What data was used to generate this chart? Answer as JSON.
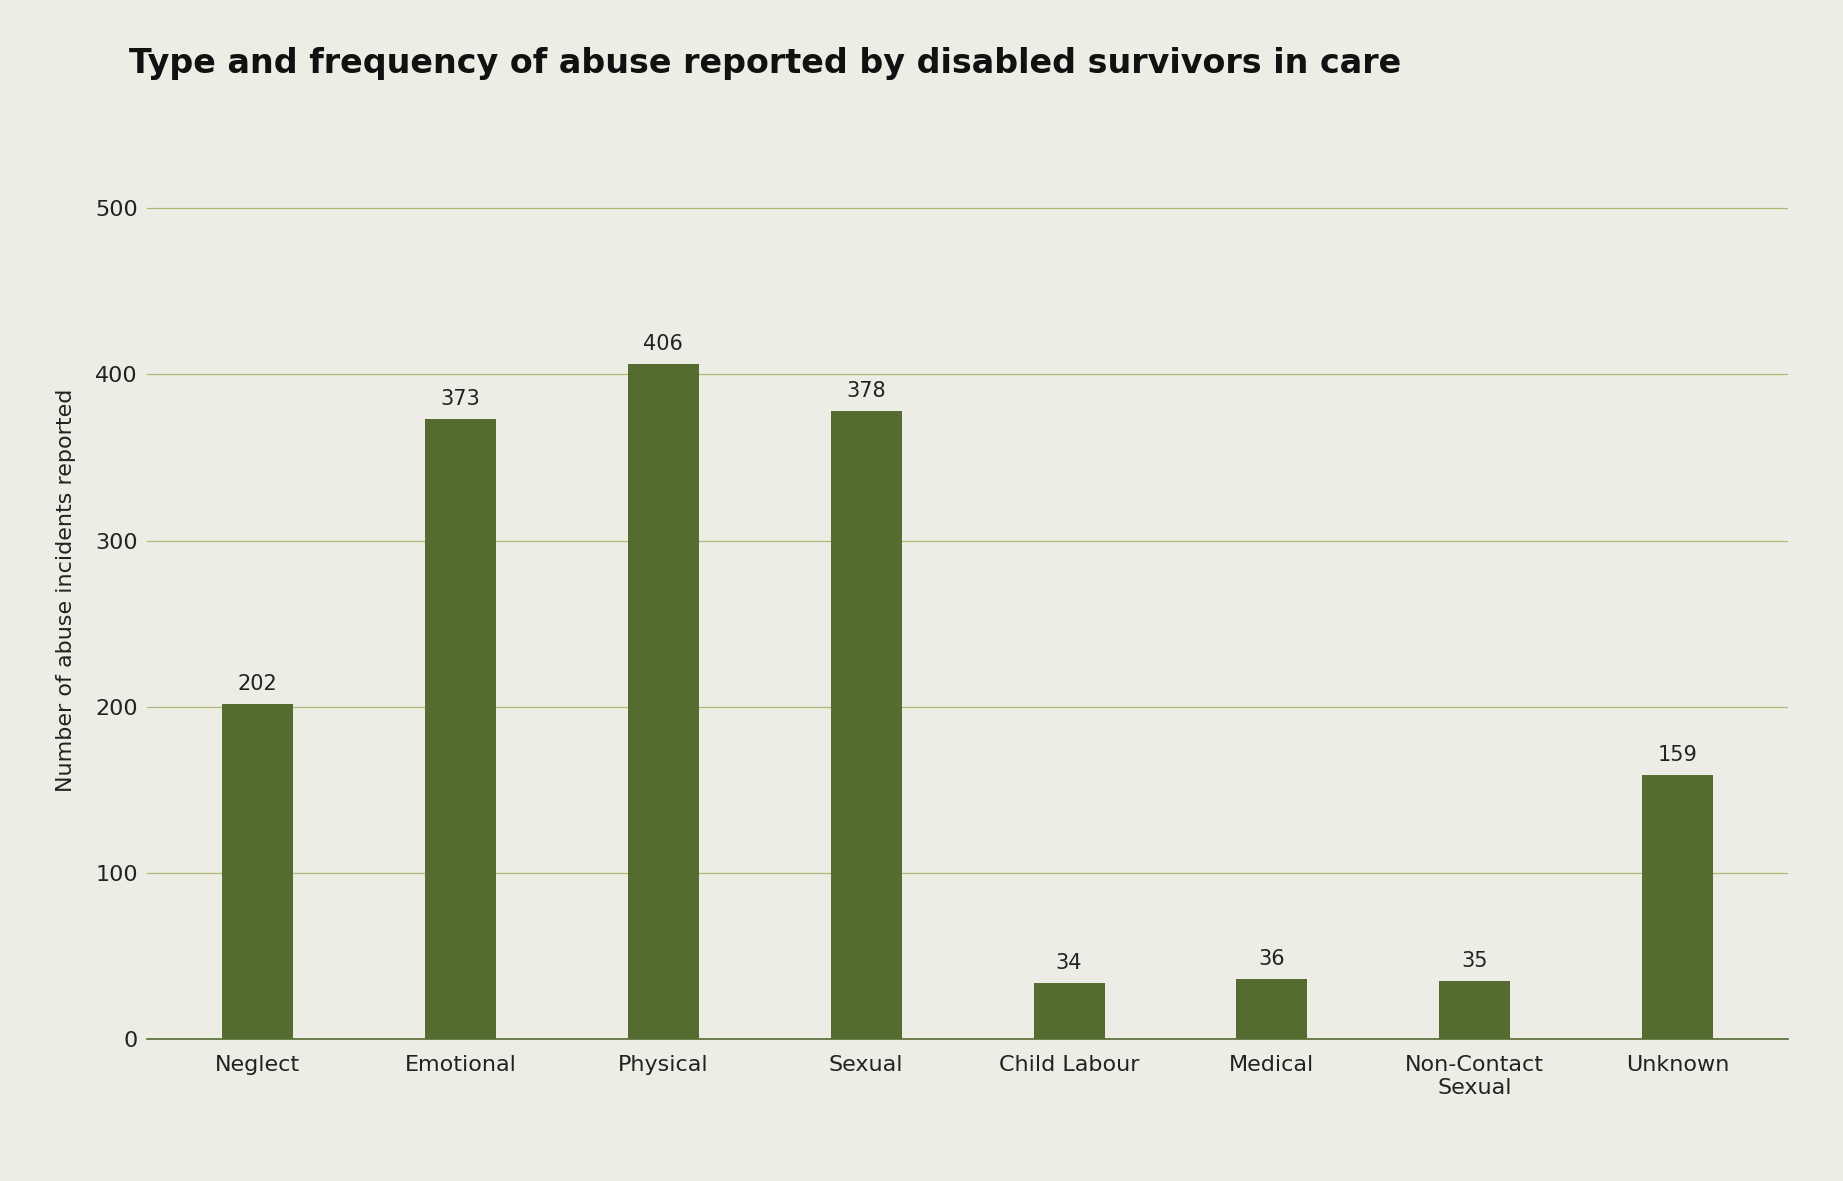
{
  "title": "Type and frequency of abuse reported by disabled survivors in care",
  "categories": [
    "Neglect",
    "Emotional",
    "Physical",
    "Sexual",
    "Child Labour",
    "Medical",
    "Non-Contact\nSexual",
    "Unknown"
  ],
  "values": [
    202,
    373,
    406,
    378,
    34,
    36,
    35,
    159
  ],
  "bar_color": "#556b2f",
  "background_color": "#eeede5",
  "ylabel": "Number of abuse incidents reported",
  "ylim": [
    0,
    540
  ],
  "yticks": [
    0,
    100,
    200,
    300,
    400,
    500
  ],
  "title_fontsize": 24,
  "label_fontsize": 16,
  "tick_fontsize": 16,
  "bar_label_fontsize": 15,
  "grid_color": "#b0b878",
  "bar_width": 0.35
}
